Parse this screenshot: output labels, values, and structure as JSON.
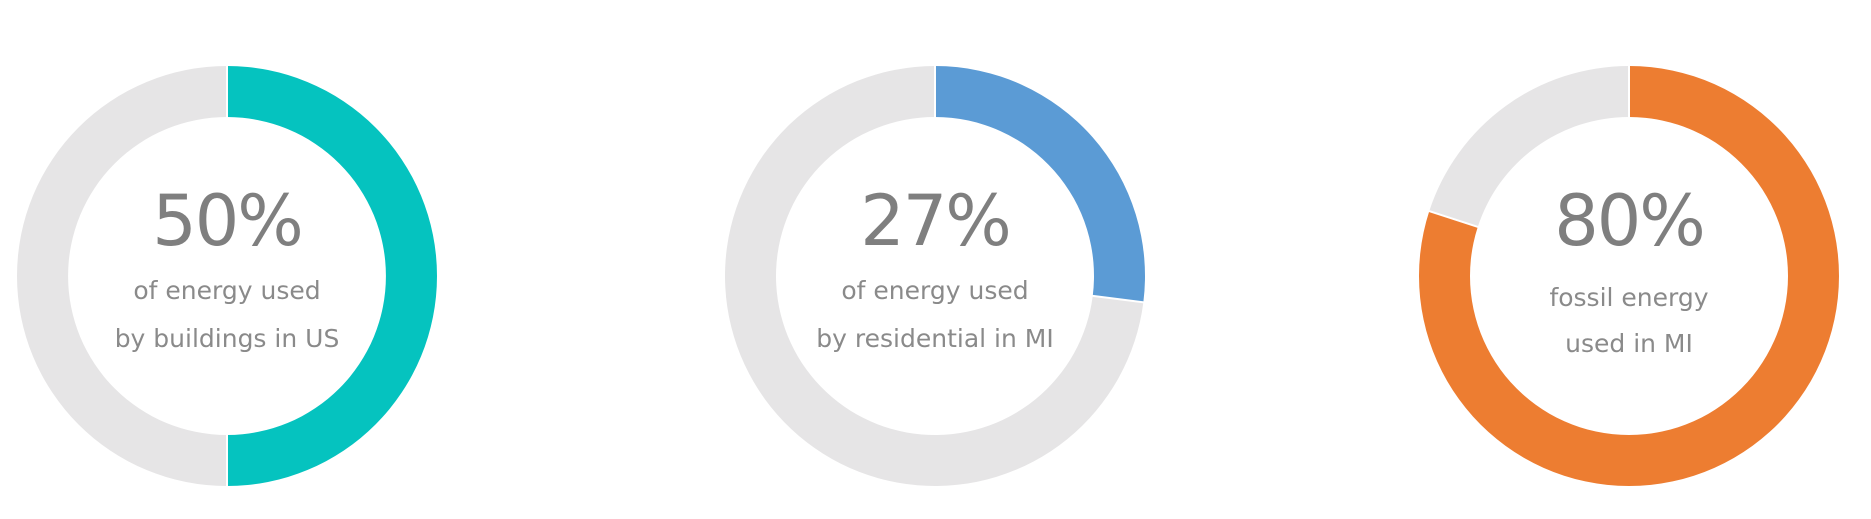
{
  "chart_data": [
    {
      "type": "pie",
      "value": 50,
      "value_label": "50%",
      "caption": [
        "of energy used",
        "by buildings in US"
      ],
      "colors": {
        "fill": "#05C3BF",
        "track": "#E6E5E6"
      }
    },
    {
      "type": "pie",
      "value": 27,
      "value_label": "27%",
      "caption": [
        "of energy used",
        "by residential in MI"
      ],
      "colors": {
        "fill": "#5B9BD5",
        "track": "#E6E5E6"
      }
    },
    {
      "type": "pie",
      "value": 80,
      "value_label": "80%",
      "caption": [
        "fossil energy",
        "used in MI"
      ],
      "colors": {
        "fill": "#ED7D31",
        "track": "#E6E5E6"
      }
    }
  ]
}
